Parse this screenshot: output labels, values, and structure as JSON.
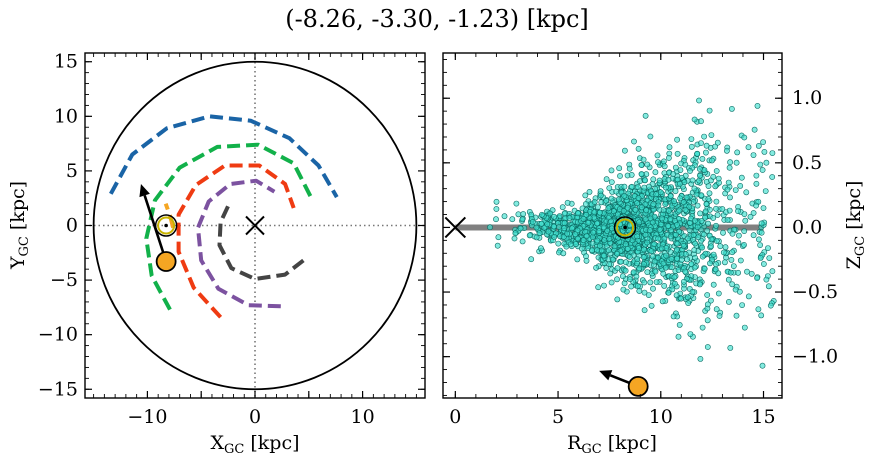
{
  "title": "(-8.26, -3.30, -1.23) [kpc]",
  "colors": {
    "arm_blue": "#1a64a6",
    "arm_green": "#12b14a",
    "arm_red": "#ef3b12",
    "arm_purple": "#7c52a0",
    "arm_dark": "#444444",
    "arm_orange_short": "#f5a623",
    "star_fill": "#f5a623",
    "sun_ring": "#c8b400",
    "scatter_fill": "#40e0d0",
    "scatter_edge": "#0a6a62",
    "plane_line": "#808080"
  },
  "chart_data": [
    {
      "type": "line",
      "name": "galactic-plane-xy",
      "title": "",
      "xlabel": {
        "main": "X",
        "sub": "GC",
        "unit": " [kpc]"
      },
      "ylabel": {
        "main": "Y",
        "sub": "GC",
        "unit": " [kpc]"
      },
      "xlim": [
        -15.8,
        15.8
      ],
      "ylim": [
        -15.8,
        15.8
      ],
      "xticks": [
        -10,
        -5,
        0,
        5,
        10
      ],
      "xtick_labels": [
        "−10",
        "",
        "0",
        "",
        "10"
      ],
      "yticks": [
        -15,
        -10,
        -5,
        0,
        5,
        10,
        15
      ],
      "ytick_labels": [
        "−15",
        "−10",
        "−5",
        "0",
        "5",
        "10",
        "15"
      ],
      "outer_circle_radius": 15,
      "gc_marker": [
        0,
        0
      ],
      "sun": [
        -8.26,
        0.0
      ],
      "star": [
        -8.26,
        -3.3
      ],
      "star_motion_arrow": {
        "from": [
          -8.26,
          -3.3
        ],
        "to": [
          -10.6,
          3.8
        ]
      },
      "arms": [
        {
          "color_key": "arm_blue",
          "points": [
            [
              -13.4,
              2.9
            ],
            [
              -11.4,
              6.5
            ],
            [
              -8.2,
              8.9
            ],
            [
              -4.2,
              10.0
            ],
            [
              -0.4,
              9.6
            ],
            [
              3.2,
              8.0
            ],
            [
              5.9,
              5.5
            ],
            [
              7.6,
              2.6
            ]
          ]
        },
        {
          "color_key": "arm_green",
          "points": [
            [
              -7.9,
              -7.7
            ],
            [
              -9.6,
              -4.6
            ],
            [
              -10.1,
              -1.2
            ],
            [
              -9.3,
              2.3
            ],
            [
              -7.0,
              5.3
            ],
            [
              -3.5,
              7.2
            ],
            [
              0.3,
              7.4
            ],
            [
              3.6,
              5.7
            ],
            [
              5.3,
              2.4
            ]
          ]
        },
        {
          "color_key": "arm_red",
          "points": [
            [
              -3.2,
              -8.4
            ],
            [
              -5.7,
              -5.7
            ],
            [
              -7.1,
              -2.4
            ],
            [
              -7.1,
              1.0
            ],
            [
              -5.5,
              3.7
            ],
            [
              -2.8,
              5.5
            ],
            [
              0.4,
              5.5
            ],
            [
              2.8,
              3.8
            ],
            [
              3.6,
              1.6
            ]
          ]
        },
        {
          "color_key": "arm_purple",
          "points": [
            [
              2.4,
              -7.4
            ],
            [
              -0.6,
              -7.3
            ],
            [
              -3.4,
              -5.8
            ],
            [
              -5.0,
              -3.2
            ],
            [
              -5.3,
              -0.2
            ],
            [
              -4.3,
              2.2
            ],
            [
              -2.3,
              3.8
            ],
            [
              0.1,
              4.1
            ],
            [
              1.8,
              3.1
            ]
          ]
        },
        {
          "color_key": "arm_dark",
          "points": [
            [
              4.5,
              -3.2
            ],
            [
              2.8,
              -4.5
            ],
            [
              0.0,
              -4.9
            ],
            [
              -2.2,
              -3.9
            ],
            [
              -3.3,
              -1.8
            ],
            [
              -3.2,
              0.3
            ],
            [
              -2.4,
              2.0
            ]
          ]
        },
        {
          "color_key": "arm_orange_short",
          "points": [
            [
              -7.6,
              -0.2
            ],
            [
              -7.9,
              0.9
            ],
            [
              -8.3,
              2.0
            ]
          ]
        }
      ]
    },
    {
      "type": "scatter",
      "name": "r-z-plane",
      "title": "",
      "xlabel": {
        "main": "R",
        "sub": "GC",
        "unit": " [kpc]"
      },
      "ylabel": {
        "main": "Z",
        "sub": "GC",
        "unit": " [kpc]"
      },
      "xlim": [
        -0.6,
        15.9
      ],
      "ylim": [
        -1.32,
        1.35
      ],
      "xticks": [
        0,
        5,
        10,
        15
      ],
      "xtick_labels": [
        "0",
        "5",
        "10",
        "15"
      ],
      "yticks": [
        1.0,
        0.5,
        0.0,
        -0.5,
        -1.0
      ],
      "ytick_labels": [
        "1.0",
        "0.5",
        "0.0",
        "−0.5",
        "−1.0"
      ],
      "y_axis_side": "right",
      "gc_marker": [
        0,
        0
      ],
      "plane_line": {
        "x": [
          0,
          15
        ],
        "y": 0
      },
      "sun": [
        8.26,
        0.0
      ],
      "star": [
        8.9,
        -1.23
      ],
      "star_motion_arrow": {
        "from": [
          8.9,
          -1.23
        ],
        "to": [
          7.0,
          -1.11
        ]
      },
      "points": "dense cloud of ~2000 stars centred near the Sun, concentrated within |Z| < 0.25 kpc for R = 3–14 kpc, with a flaring tail to |Z| ≈ 1.2 kpc at R > 10 kpc",
      "point_count": 2000
    }
  ]
}
